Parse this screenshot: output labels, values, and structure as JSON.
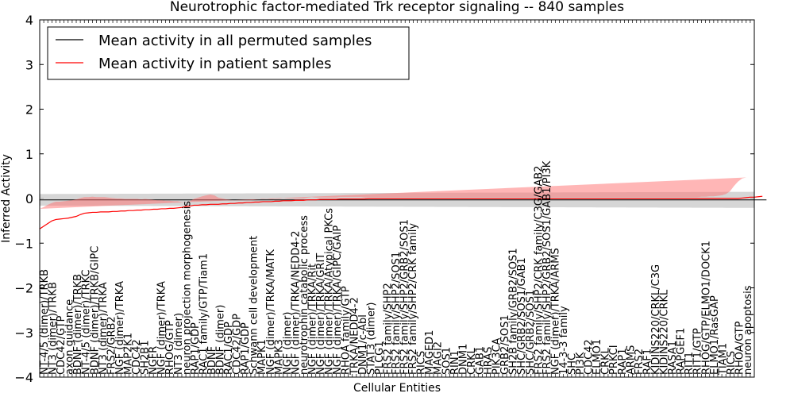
{
  "chart_data": {
    "type": "line",
    "title": "Neurotrophic factor-mediated Trk receptor signaling -- 840 samples",
    "xlabel": "Cellular Entities",
    "ylabel": "Inferred Activity",
    "ylim": [
      -4,
      4
    ],
    "yticks": [
      -4,
      -3,
      -2,
      -1,
      0,
      1,
      2,
      3,
      4
    ],
    "grid": false,
    "legend_position": "top-left",
    "legend": [
      {
        "label": "Mean activity in all permuted samples",
        "color": "#000000"
      },
      {
        "label": "Mean activity in patient samples",
        "color": "#ff0000"
      }
    ],
    "n_points": 177,
    "tick_labels": [
      "NT-4/5 (dimer)/TRKB",
      "NT3 (dimer)/TRKB",
      "CDC42/GTP",
      "axon guidance",
      "BDNF (dimer)/TRKB",
      "NT-4/5 (dimer)/TRKC",
      "BDNF (dimer)/TRKB/GIPC",
      "NT3 (dimer)/TRKA",
      "FRS2/GRB2",
      "NGF (dimer)/TRKA",
      "MAP2K1",
      "CDC42",
      "SH2B1",
      "NGFR",
      "NGF (dimer)/TRKA",
      "RHOG/GTP",
      "NT3 (dimer)",
      "neuron projection morphogenesis",
      "RAP1/GDP",
      "RAC1 family/GTP/Tiam1",
      "BDNF",
      "BDNF (dimer)",
      "RAC1/GDP",
      "CDC42/GDP",
      "RAP1/GDP",
      "Schwann cell development",
      "MAPK1",
      "NGF (dimer)/TRKA/MATK",
      "MAPK3",
      "NGF (dimer)",
      "NGF (dimer)/TRKA/NEDD4-2",
      "neurotrophin catabolic process",
      "NGF (dimer)/TRKA/Rit",
      "NGF (dimer)/TRKA/GRIT",
      "NGF (dimer)/TRKA/Atypical PKCs",
      "NGF (dimer)/TRKA/GIPC/GAIP",
      "RHOA family/GTP",
      "TRKA/NEDD4-2",
      "DNM1/c-Abl",
      "STAT3 (dimer)",
      "PLCG1",
      "FRS2 family/SHP2",
      "FRS2 family/SHP2/SOS1",
      "FRS2 family/SHP2/GRB2/SOS1",
      "FRS2 family/SHP2/CRK family",
      "RICS",
      "MAGED1",
      "MAGI2",
      "SOS1",
      "RIN1",
      "DNM1",
      "CRKL",
      "GAB1",
      "HRAS",
      "PIK3CA",
      "GRB2/SOS1",
      "SH2B family/GRB2/SOS1",
      "SHC/GRB2/SOS1/GAB1",
      "SHC/GRB2/SOS1",
      "FRS2 family/SHP2/CRK family/C3G/GAB2",
      "FRS2 family/SHP2/GRB2/SOS1/GAB1/PI3K",
      "NGF (dimer)/TRKA/ARMS",
      "14-3-3 family",
      "SHC",
      "PI3K",
      "CDC42",
      "ELMO1",
      "CRKL",
      "PRKCI",
      "RAP1",
      "ARMS",
      "FRS2",
      "RAF1",
      "KIDINS220/CRKL/C3G",
      "KIDINS220/CRKL",
      "RASA1",
      "RAPGEF1",
      "RIT1",
      "RIT1/GTP",
      "RHOG/GTP/ELMO1/DOCK1",
      "ELMO1/RasGAP",
      "TIAM1",
      "RICS",
      "RHOA/GTP",
      "neuron apoptosis"
    ],
    "permuted_mean": [
      -0.03,
      -0.03,
      -0.03,
      -0.03,
      -0.03,
      -0.03,
      -0.03,
      -0.03,
      -0.03,
      -0.03,
      -0.03,
      -0.03,
      -0.03,
      -0.03,
      -0.03,
      -0.03,
      -0.03,
      -0.03,
      -0.03,
      -0.03,
      -0.03,
      -0.03,
      -0.03,
      -0.03,
      -0.03,
      -0.03,
      -0.03,
      -0.03,
      -0.03,
      -0.03,
      -0.03,
      -0.03,
      -0.03,
      -0.03,
      -0.03,
      -0.03,
      -0.03,
      -0.03,
      -0.03,
      -0.03,
      -0.03,
      -0.03,
      -0.03,
      -0.03,
      -0.03,
      -0.03,
      -0.03,
      -0.03,
      -0.03,
      -0.03,
      -0.03,
      -0.03,
      -0.03,
      -0.03,
      -0.03,
      -0.03,
      -0.03,
      -0.03,
      -0.03,
      -0.03,
      -0.03,
      -0.03,
      -0.03,
      -0.03,
      -0.03,
      -0.03,
      -0.03,
      -0.03,
      -0.03,
      -0.03,
      -0.03,
      -0.03,
      -0.03,
      -0.03,
      -0.03,
      -0.03,
      -0.03,
      -0.03,
      -0.03,
      -0.03,
      -0.03,
      -0.03,
      -0.03,
      -0.03,
      -0.03,
      -0.03,
      -0.03,
      -0.03,
      -0.03,
      -0.03,
      -0.03,
      -0.03,
      -0.03,
      -0.03,
      -0.03,
      -0.03,
      -0.03,
      -0.03,
      -0.03,
      -0.03,
      -0.03,
      -0.03,
      -0.03,
      -0.03,
      -0.03,
      -0.03,
      -0.03,
      -0.03,
      -0.03,
      -0.03,
      -0.03,
      -0.03,
      -0.03,
      -0.03,
      -0.03,
      -0.03,
      -0.03,
      -0.03,
      -0.03,
      -0.03,
      -0.03,
      -0.03,
      -0.03,
      -0.03,
      -0.03,
      -0.03,
      -0.03,
      -0.03,
      -0.03,
      -0.03,
      -0.03,
      -0.03,
      -0.03,
      -0.03,
      -0.03,
      -0.03,
      -0.03,
      -0.03,
      -0.03,
      -0.03,
      -0.03,
      -0.03,
      -0.03,
      -0.03,
      -0.03,
      -0.03,
      -0.03,
      -0.03,
      -0.03,
      -0.03,
      -0.03,
      -0.03,
      -0.03,
      -0.03,
      -0.03,
      -0.03,
      -0.03,
      -0.03,
      -0.03,
      -0.03,
      -0.03,
      -0.03,
      -0.03,
      -0.03,
      -0.03,
      -0.03,
      -0.03,
      -0.03,
      -0.03,
      -0.03,
      -0.03,
      -0.03,
      -0.03,
      -0.03,
      -0.03,
      -0.03,
      -0.03,
      -0.03,
      -0.03,
      -0.03
    ],
    "permuted_band": [
      0.13,
      0.18
    ],
    "patient_mean": [
      -0.68,
      -0.62,
      -0.56,
      -0.5,
      -0.47,
      -0.46,
      -0.45,
      -0.44,
      -0.42,
      -0.4,
      -0.36,
      -0.33,
      -0.32,
      -0.31,
      -0.31,
      -0.3,
      -0.3,
      -0.3,
      -0.29,
      -0.29,
      -0.28,
      -0.28,
      -0.27,
      -0.27,
      -0.26,
      -0.26,
      -0.25,
      -0.25,
      -0.24,
      -0.24,
      -0.23,
      -0.23,
      -0.22,
      -0.22,
      -0.21,
      -0.2,
      -0.18,
      -0.17,
      -0.15,
      -0.15,
      -0.14,
      -0.14,
      -0.13,
      -0.13,
      -0.13,
      -0.12,
      -0.12,
      -0.11,
      -0.11,
      -0.1,
      -0.1,
      -0.09,
      -0.09,
      -0.08,
      -0.08,
      -0.07,
      -0.07,
      -0.07,
      -0.06,
      -0.06,
      -0.05,
      -0.05,
      -0.05,
      -0.04,
      -0.04,
      -0.04,
      -0.03,
      -0.03,
      -0.03,
      -0.02,
      -0.02,
      -0.02,
      -0.02,
      -0.02,
      -0.01,
      -0.01,
      -0.01,
      -0.01,
      -0.01,
      -0.01,
      -0.01,
      0,
      0,
      0,
      0,
      0,
      0,
      0,
      0,
      0,
      0,
      0,
      0,
      0,
      0,
      0,
      0,
      0,
      0,
      0,
      0,
      0,
      0,
      0,
      0,
      0,
      0,
      0,
      0,
      0,
      0,
      0,
      0,
      0,
      0,
      0,
      0,
      0,
      0,
      0,
      0,
      0,
      0,
      0,
      0,
      0,
      0,
      0,
      0,
      0,
      0,
      0,
      0,
      0,
      0,
      0,
      0,
      0,
      0,
      0,
      0,
      0,
      0,
      0,
      0,
      0,
      0,
      0,
      0,
      0,
      0,
      0,
      0,
      0,
      0,
      0,
      0,
      0,
      0,
      0,
      0,
      0,
      0,
      0,
      0,
      0,
      0,
      0,
      0,
      0,
      0,
      0,
      0,
      0.01,
      0.02,
      0.03,
      0.03,
      0.04,
      0.05
    ],
    "patient_band": [
      0.45,
      0.43,
      0.42,
      0.4,
      0.4,
      0.39,
      0.39,
      0.39,
      0.38,
      0.38,
      0.37,
      0.36,
      0.35,
      0.35,
      0.34,
      0.33,
      0.33,
      0.32,
      0.3,
      0.29,
      0.28,
      0.27,
      0.26,
      0.26,
      0.25,
      0.24,
      0.24,
      0.23,
      0.21,
      0.2,
      0.19,
      0.18,
      0.17,
      0.16,
      0.15,
      0.12,
      0.1,
      0.11,
      0.14,
      0.17,
      0.19,
      0.21,
      0.22,
      0.2,
      0.15,
      0.12,
      0.1,
      0.08,
      0.07,
      0.06,
      0.06,
      0.05,
      0.05,
      0.05,
      0.06,
      0.07,
      0.06,
      0.05,
      0.05,
      0.05,
      0.06,
      0.05,
      0.05,
      0.04,
      0.04,
      0.04,
      0.05,
      0.06,
      0.05,
      0.04,
      0.04,
      0.04,
      0.04,
      0.04,
      0.04,
      0.04,
      0.04,
      0.04,
      0.04,
      0.04,
      0.03,
      0.03,
      0.03,
      0.03,
      0.03,
      0.03,
      0.03,
      0.03,
      0.03,
      0.03,
      0.03,
      0.03,
      0.03,
      0.03,
      0.03,
      0.03,
      0.03,
      0.03,
      0.03,
      0.03,
      0.03,
      0.03,
      0.03,
      0.03,
      0.03,
      0.03,
      0.03,
      0.03,
      0.03,
      0.03,
      0.03,
      0.03,
      0.03,
      0.03,
      0.03,
      0.03,
      0.03,
      0.03,
      0.03,
      0.03,
      0.03,
      0.03,
      0.03,
      0.03,
      0.03,
      0.03,
      0.03,
      0.03,
      0.03,
      0.03,
      0.03,
      0.03,
      0.03,
      0.03,
      0.03,
      0.03,
      0.03,
      0.03,
      0.03,
      0.03,
      0.03,
      0.03,
      0.03,
      0.03,
      0.03,
      0.03,
      0.03,
      0.03,
      0.03,
      0.03,
      0.03,
      0.03,
      0.03,
      0.03,
      0.03,
      0.03,
      0.03,
      0.03,
      0.03,
      0.03,
      0.03,
      0.03,
      0.03,
      0.04,
      0.04,
      0.05,
      0.05,
      0.06,
      0.07,
      0.1,
      0.16,
      0.28,
      0.38,
      0.44,
      0.45
    ]
  }
}
